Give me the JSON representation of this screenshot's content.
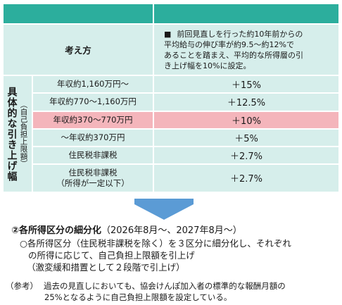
{
  "table": {
    "rationale_header": "考え方",
    "rationale_bullet": "■",
    "rationale_lines": [
      "前回見直しを行った約10年前からの",
      "平均給与の伸び率が約9.5～約12%で",
      "あることを踏まえ、平均的な所得層の引",
      "き上げ幅を10%に設定。"
    ],
    "side_main": "具体的な引き上げ幅",
    "side_sub": "（自己負担上限額）",
    "rows": [
      {
        "label": "年収約1,160万円～",
        "value": "＋15%"
      },
      {
        "label": "年収約770～1,160万円",
        "value": "＋12.5%"
      },
      {
        "label": "年収約370～770万円",
        "value": "＋10%"
      },
      {
        "label": "～年収約370万円",
        "value": "＋5%"
      },
      {
        "label": "住民税非課税",
        "value": "＋2.7%"
      },
      {
        "label": "住民税非課税",
        "label2": "（所得が一定以下）",
        "value": "＋2.7%"
      }
    ]
  },
  "section": {
    "title": "②各所得区分の細分化",
    "period": "（2026年8月～、2027年8月～）",
    "lines": [
      "○各所得区分（住民税非課税を除く）を３区分に細分化し、それぞれ",
      "の所得に応じて、自己負担上限額を引上げ",
      "（激変緩和措置として２段階で引上げ）"
    ]
  },
  "reference": {
    "tag": "（参考）",
    "line1": "過去の見直しにおいても、協会けんぽ加入者の標準的な報酬月額の",
    "line2": "25%となるように自己負担上限額を設定している。"
  },
  "colors": {
    "header": "#2cae9d",
    "light": "#d6eeeb",
    "highlight": "#f4b5bb",
    "arrow": "#5b9bd5"
  }
}
